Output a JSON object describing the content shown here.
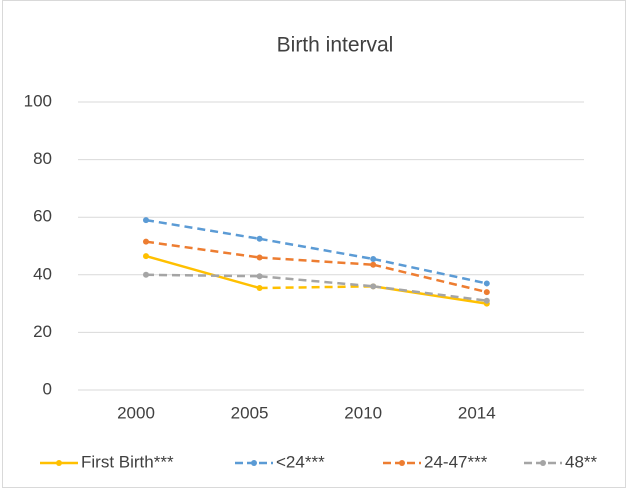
{
  "chart_data": {
    "type": "line",
    "title": "Birth interval",
    "categories": [
      "2000",
      "2005",
      "2010",
      "2014"
    ],
    "ylim": [
      0,
      100
    ],
    "yticks": [
      0,
      20,
      40,
      60,
      80,
      100
    ],
    "grid": true,
    "legend": "bottom",
    "series": [
      {
        "name": "First Birth***",
        "color": "#ffc000",
        "values": [
          46.5,
          35.4,
          36,
          30
        ],
        "segment_styles": [
          "solid",
          "dashed",
          "solid"
        ]
      },
      {
        "name": "<24***",
        "color": "#5b9bd5",
        "values": [
          59,
          52.5,
          45.5,
          37
        ],
        "segment_styles": [
          "dashed",
          "dashed",
          "dashed"
        ]
      },
      {
        "name": "24-47***",
        "color": "#ed7d31",
        "values": [
          51.5,
          46,
          43.5,
          34
        ],
        "segment_styles": [
          "dashed",
          "dashed",
          "dashed"
        ]
      },
      {
        "name": "48**",
        "color": "#a5a5a5",
        "values": [
          40,
          39.5,
          36,
          31
        ],
        "segment_styles": [
          "dashed",
          "dashed",
          "dashed"
        ]
      }
    ]
  }
}
